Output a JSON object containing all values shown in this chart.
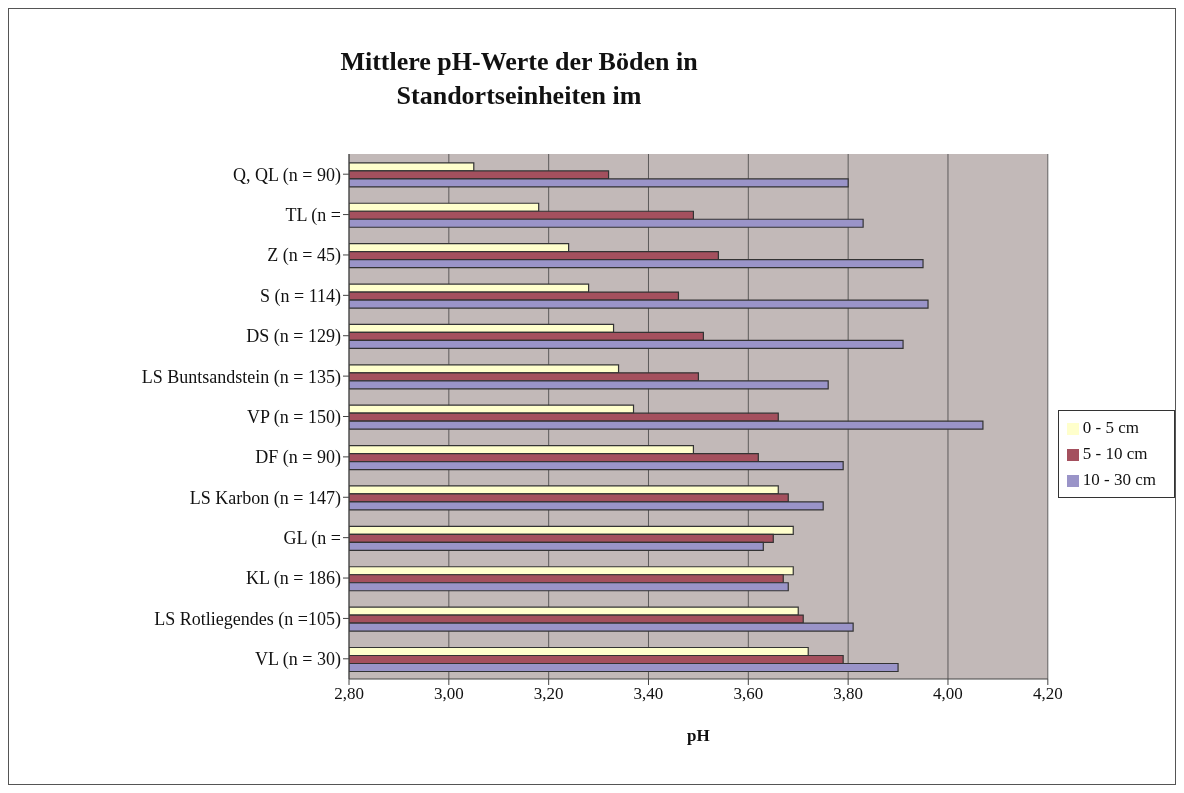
{
  "chart_data": {
    "type": "bar",
    "orientation": "horizontal",
    "title": "Mittlere pH-Werte der Böden in Standortseinheiten im",
    "xlabel": "pH",
    "categories": [
      "Q, QL (n = 90)",
      "TL (n =",
      "Z (n = 45)",
      "S (n = 114)",
      "DS (n = 129)",
      "LS Buntsandstein (n = 135)",
      "VP (n = 150)",
      "DF (n = 90)",
      "LS Karbon (n = 147)",
      "GL (n =",
      "KL (n = 186)",
      "LS Rotliegendes (n =105)",
      "VL (n = 30)"
    ],
    "series": [
      {
        "name": "0 - 5 cm",
        "color": "#ffffcc",
        "values": [
          3.05,
          3.18,
          3.24,
          3.28,
          3.33,
          3.34,
          3.37,
          3.49,
          3.66,
          3.69,
          3.69,
          3.7,
          3.72
        ]
      },
      {
        "name": "5 - 10 cm",
        "color": "#a4505e",
        "values": [
          3.32,
          3.49,
          3.54,
          3.46,
          3.51,
          3.5,
          3.66,
          3.62,
          3.68,
          3.65,
          3.67,
          3.71,
          3.79
        ]
      },
      {
        "name": "10 - 30 cm",
        "color": "#9a94c8",
        "values": [
          3.8,
          3.83,
          3.95,
          3.96,
          3.91,
          3.76,
          4.07,
          3.79,
          3.75,
          3.63,
          3.68,
          3.81,
          3.9
        ]
      }
    ],
    "xlim": [
      2.8,
      4.2
    ],
    "xticks": [
      {
        "value": 2.8,
        "label": "2,80"
      },
      {
        "value": 3.0,
        "label": "3,00"
      },
      {
        "value": 3.2,
        "label": "3,20"
      },
      {
        "value": 3.4,
        "label": "3,40"
      },
      {
        "value": 3.6,
        "label": "3,60"
      },
      {
        "value": 3.8,
        "label": "3,80"
      },
      {
        "value": 4.0,
        "label": "4,00"
      },
      {
        "value": 4.2,
        "label": "4,20"
      }
    ],
    "grid": "x",
    "legend": "right"
  }
}
